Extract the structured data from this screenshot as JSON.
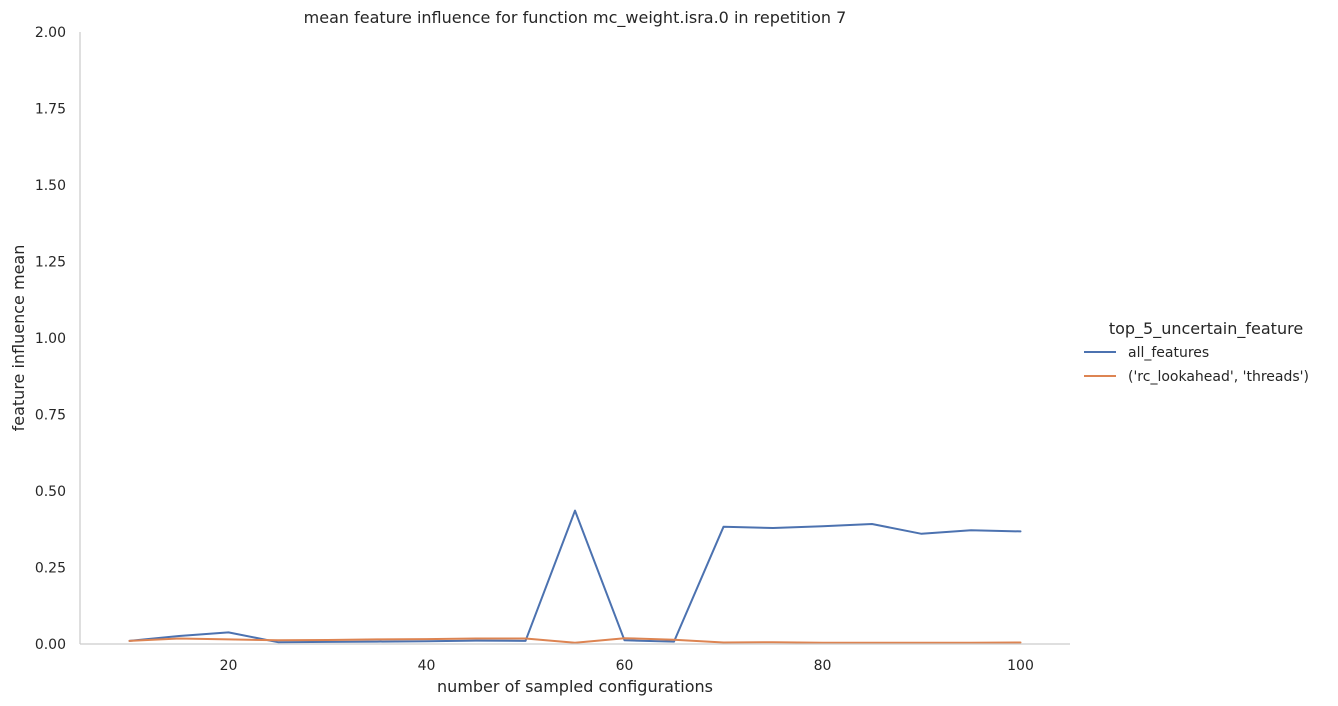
{
  "chart_data": {
    "type": "line",
    "title": "mean feature influence for function mc_weight.isra.0 in repetition 7",
    "xlabel": "number of sampled configurations",
    "ylabel": "feature influence mean",
    "xlim": [
      5,
      105
    ],
    "ylim": [
      0,
      2
    ],
    "xticks": [
      20,
      40,
      60,
      80,
      100
    ],
    "yticks": [
      "0.00",
      "0.25",
      "0.50",
      "0.75",
      "1.00",
      "1.25",
      "1.50",
      "1.75",
      "2.00"
    ],
    "grid": false,
    "legend": {
      "title": "top_5_uncertain_feature",
      "placement": "right"
    },
    "x": [
      10,
      15,
      20,
      25,
      30,
      35,
      40,
      45,
      50,
      55,
      60,
      65,
      70,
      75,
      80,
      85,
      90,
      95,
      100
    ],
    "series": [
      {
        "name": "all_features",
        "color": "#4c72b0",
        "values": [
          0.01,
          0.026,
          0.038,
          0.006,
          0.007,
          0.008,
          0.009,
          0.011,
          0.01,
          0.436,
          0.012,
          0.008,
          0.383,
          0.379,
          0.385,
          0.392,
          0.36,
          0.372,
          0.368
        ]
      },
      {
        "name": "('rc_lookahead', 'threads')",
        "color": "#dd8452",
        "values": [
          0.01,
          0.018,
          0.015,
          0.012,
          0.013,
          0.015,
          0.016,
          0.018,
          0.018,
          0.004,
          0.019,
          0.014,
          0.005,
          0.006,
          0.004,
          0.004,
          0.004,
          0.004,
          0.005
        ]
      }
    ]
  }
}
